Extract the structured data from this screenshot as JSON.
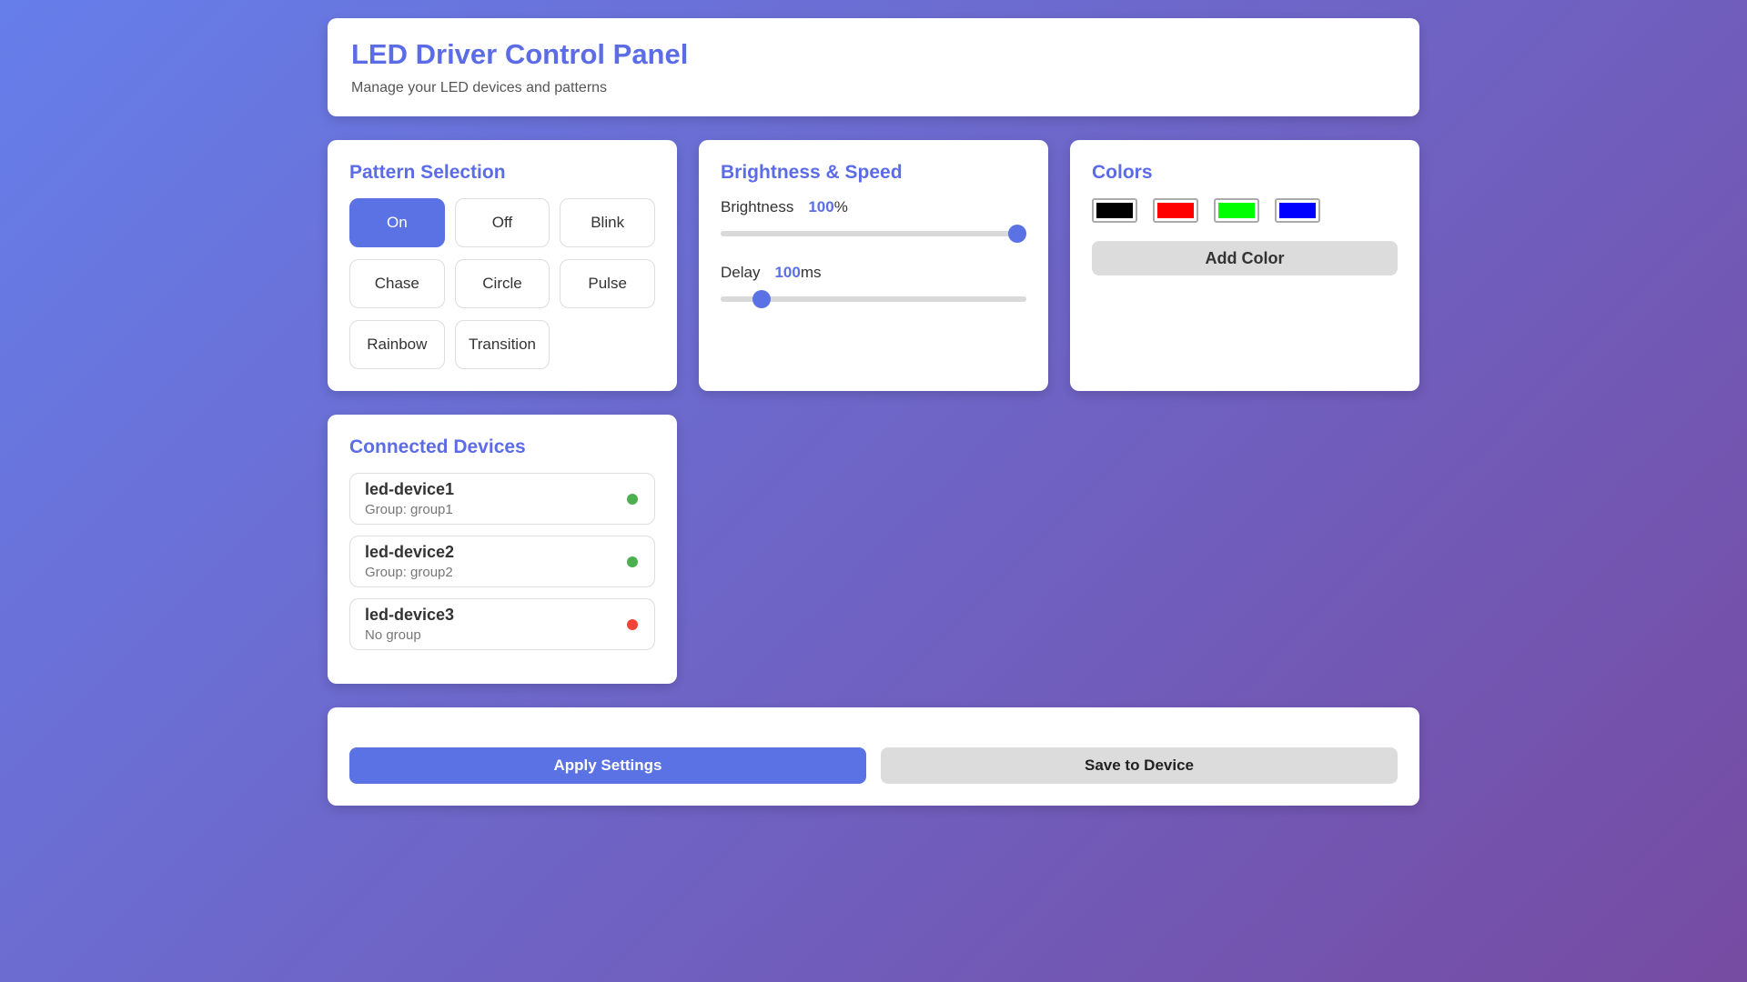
{
  "theme": {
    "accent": "#5b72e4",
    "heading_color": "#5b6ce6",
    "bg_gradient_start": "#667eea",
    "bg_gradient_end": "#764ba2",
    "online_color": "#4caf50",
    "offline_color": "#f44336"
  },
  "header": {
    "title": "LED Driver Control Panel",
    "subtitle": "Manage your LED devices and patterns"
  },
  "pattern_section": {
    "title": "Pattern Selection",
    "patterns": [
      {
        "label": "On",
        "active": true
      },
      {
        "label": "Off",
        "active": false
      },
      {
        "label": "Blink",
        "active": false
      },
      {
        "label": "Chase",
        "active": false
      },
      {
        "label": "Circle",
        "active": false
      },
      {
        "label": "Pulse",
        "active": false
      },
      {
        "label": "Rainbow",
        "active": false
      },
      {
        "label": "Transition",
        "active": false
      }
    ]
  },
  "brightness_section": {
    "title": "Brightness & Speed",
    "sliders": [
      {
        "label": "Brightness",
        "value": "100",
        "unit": "%",
        "percent": 100
      },
      {
        "label": "Delay",
        "value": "100",
        "unit": "ms",
        "percent": 11
      }
    ]
  },
  "colors_section": {
    "title": "Colors",
    "swatches": [
      "#000000",
      "#ff0000",
      "#00ff00",
      "#0000ff"
    ],
    "add_button_label": "Add Color"
  },
  "devices_section": {
    "title": "Connected Devices",
    "devices": [
      {
        "name": "led-device1",
        "group": "Group: group1",
        "status": "online"
      },
      {
        "name": "led-device2",
        "group": "Group: group2",
        "status": "online"
      },
      {
        "name": "led-device3",
        "group": "No group",
        "status": "offline"
      }
    ]
  },
  "actions": {
    "apply_label": "Apply Settings",
    "save_label": "Save to Device"
  }
}
